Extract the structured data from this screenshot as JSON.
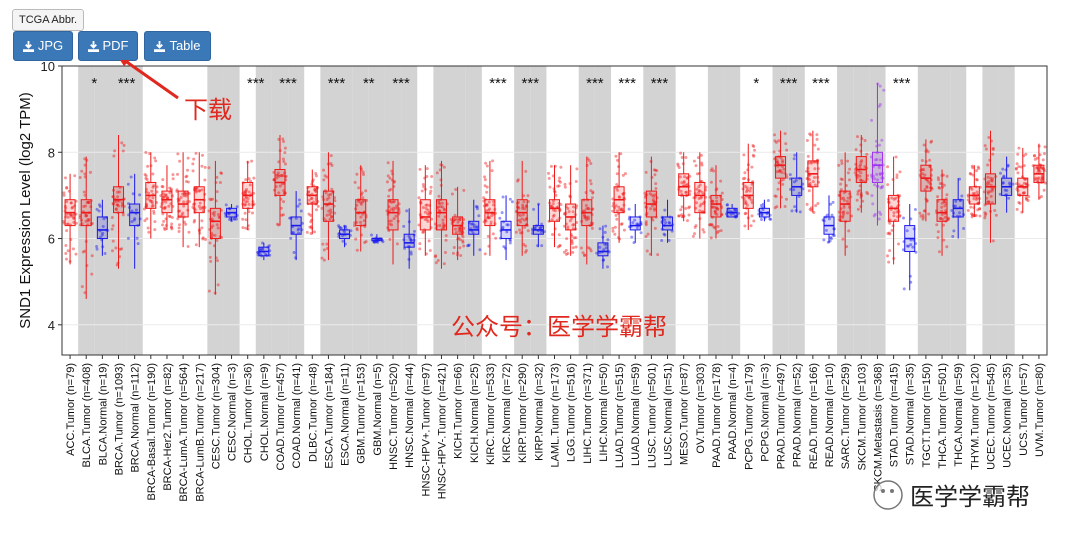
{
  "toolbar": {
    "abbr_label": "TCGA Abbr.",
    "buttons": [
      {
        "label": "JPG",
        "icon": "download-icon"
      },
      {
        "label": "PDF",
        "icon": "download-icon"
      },
      {
        "label": "Table",
        "icon": "download-icon"
      }
    ]
  },
  "annotations": {
    "download_note": "下载",
    "watermark_text": "公众号：医学学霸帮",
    "wechat_brand": "医学学霸帮"
  },
  "colors": {
    "tumor": "#f01818",
    "normal": "#1a1aee",
    "metastasis": "#a030f0",
    "shade": "#d3d3d3",
    "button": "#3a78b8",
    "annotation": "#e0281e"
  },
  "chart_data": {
    "type": "box",
    "ylabel": "SND1 Expression Level (log2 TPM)",
    "ylim": [
      3.3,
      10
    ],
    "yticks": [
      4,
      6,
      8,
      10
    ],
    "categories": [
      "ACC.Tumor (n=79)",
      "BLCA.Tumor (n=408)",
      "BLCA.Normal (n=19)",
      "BRCA.Tumor (n=1093)",
      "BRCA.Normal (n=112)",
      "BRCA-Basal.Tumor (n=190)",
      "BRCA-Her2.Tumor (n=82)",
      "BRCA-LumA.Tumor (n=564)",
      "BRCA-LumB.Tumor (n=217)",
      "CESC.Tumor (n=304)",
      "CESC.Normal (n=3)",
      "CHOL.Tumor (n=36)",
      "CHOL.Normal (n=9)",
      "COAD.Tumor (n=457)",
      "COAD.Normal (n=41)",
      "DLBC.Tumor (n=48)",
      "ESCA.Tumor (n=184)",
      "ESCA.Normal (n=11)",
      "GBM.Tumor (n=153)",
      "GBM.Normal (n=5)",
      "HNSC.Tumor (n=520)",
      "HNSC.Normal (n=44)",
      "HNSC-HPV+.Tumor (n=97)",
      "HNSC-HPV-.Tumor (n=421)",
      "KICH.Tumor (n=66)",
      "KICH.Normal (n=25)",
      "KIRC.Tumor (n=533)",
      "KIRC.Normal (n=72)",
      "KIRP.Tumor (n=290)",
      "KIRP.Normal (n=32)",
      "LAML.Tumor (n=173)",
      "LGG.Tumor (n=516)",
      "LIHC.Tumor (n=371)",
      "LIHC.Normal (n=50)",
      "LUAD.Tumor (n=515)",
      "LUAD.Normal (n=59)",
      "LUSC.Tumor (n=501)",
      "LUSC.Normal (n=51)",
      "MESO.Tumor (n=87)",
      "OV.Tumor (n=303)",
      "PAAD.Tumor (n=178)",
      "PAAD.Normal (n=4)",
      "PCPG.Tumor (n=179)",
      "PCPG.Normal (n=3)",
      "PRAD.Tumor (n=497)",
      "PRAD.Normal (n=52)",
      "READ.Tumor (n=166)",
      "READ.Normal (n=10)",
      "SARC.Tumor (n=259)",
      "SKCM.Tumor (n=103)",
      "SKCM.Metastasis (n=368)",
      "STAD.Tumor (n=415)",
      "STAD.Normal (n=35)",
      "TGCT.Tumor (n=150)",
      "THCA.Tumor (n=501)",
      "THCA.Normal (n=59)",
      "THYM.Tumor (n=120)",
      "UCEC.Tumor (n=545)",
      "UCEC.Normal (n=35)",
      "UCS.Tumor (n=57)",
      "UVM.Tumor (n=80)"
    ],
    "groups": [
      "Tumor",
      "Tumor",
      "Normal",
      "Tumor",
      "Normal",
      "Tumor",
      "Tumor",
      "Tumor",
      "Tumor",
      "Tumor",
      "Normal",
      "Tumor",
      "Normal",
      "Tumor",
      "Normal",
      "Tumor",
      "Tumor",
      "Normal",
      "Tumor",
      "Normal",
      "Tumor",
      "Normal",
      "Tumor",
      "Tumor",
      "Tumor",
      "Normal",
      "Tumor",
      "Normal",
      "Tumor",
      "Normal",
      "Tumor",
      "Tumor",
      "Tumor",
      "Normal",
      "Tumor",
      "Normal",
      "Tumor",
      "Normal",
      "Tumor",
      "Tumor",
      "Tumor",
      "Normal",
      "Tumor",
      "Normal",
      "Tumor",
      "Normal",
      "Tumor",
      "Normal",
      "Tumor",
      "Tumor",
      "Metastasis",
      "Tumor",
      "Normal",
      "Tumor",
      "Tumor",
      "Normal",
      "Tumor",
      "Tumor",
      "Normal",
      "Tumor",
      "Tumor"
    ],
    "medians": [
      6.6,
      6.6,
      6.2,
      6.9,
      6.6,
      7.0,
      6.9,
      6.8,
      6.9,
      6.4,
      6.6,
      7.0,
      5.7,
      7.3,
      6.3,
      7.0,
      6.8,
      6.1,
      6.6,
      6.0,
      6.6,
      5.9,
      6.5,
      6.6,
      6.3,
      6.2,
      6.6,
      6.2,
      6.6,
      6.2,
      6.7,
      6.5,
      6.6,
      5.7,
      6.9,
      6.3,
      6.8,
      6.3,
      7.2,
      7.0,
      6.8,
      6.6,
      7.0,
      6.6,
      7.7,
      7.2,
      7.5,
      6.3,
      6.8,
      7.6,
      7.7,
      6.7,
      6.0,
      7.4,
      6.6,
      6.7,
      7.0,
      7.2,
      7.2,
      7.2,
      7.5
    ],
    "q1": [
      6.3,
      6.3,
      6.0,
      6.6,
      6.3,
      6.7,
      6.6,
      6.5,
      6.6,
      6.0,
      6.5,
      6.7,
      5.6,
      7.0,
      6.1,
      6.8,
      6.4,
      6.0,
      6.3,
      5.95,
      6.2,
      5.8,
      6.2,
      6.2,
      6.1,
      6.1,
      6.3,
      6.0,
      6.3,
      6.1,
      6.4,
      6.2,
      6.3,
      5.6,
      6.6,
      6.2,
      6.5,
      6.2,
      7.0,
      6.6,
      6.5,
      6.5,
      6.7,
      6.5,
      7.4,
      7.0,
      7.2,
      6.1,
      6.4,
      7.3,
      7.3,
      6.4,
      5.7,
      7.1,
      6.4,
      6.5,
      6.8,
      6.8,
      7.0,
      7.0,
      7.3
    ],
    "q3": [
      6.9,
      6.9,
      6.5,
      7.2,
      6.8,
      7.3,
      7.1,
      7.1,
      7.2,
      6.7,
      6.7,
      7.3,
      5.8,
      7.6,
      6.5,
      7.2,
      7.1,
      6.2,
      6.9,
      6.0,
      6.9,
      6.1,
      6.9,
      6.9,
      6.5,
      6.4,
      6.9,
      6.4,
      6.9,
      6.3,
      6.9,
      6.8,
      6.9,
      5.9,
      7.2,
      6.5,
      7.1,
      6.5,
      7.5,
      7.3,
      7.0,
      6.7,
      7.3,
      6.7,
      7.9,
      7.4,
      7.8,
      6.5,
      7.1,
      7.9,
      8.0,
      7.0,
      6.3,
      7.7,
      6.9,
      6.9,
      7.2,
      7.5,
      7.4,
      7.4,
      7.7
    ],
    "whisker_low": [
      5.4,
      4.6,
      5.6,
      5.3,
      5.3,
      6.0,
      6.2,
      5.8,
      5.8,
      4.7,
      6.4,
      6.2,
      5.5,
      6.3,
      5.5,
      6.1,
      5.5,
      5.8,
      5.7,
      5.9,
      5.4,
      5.3,
      5.6,
      5.3,
      5.5,
      5.6,
      5.6,
      5.5,
      5.6,
      5.8,
      5.8,
      5.6,
      5.4,
      5.3,
      5.9,
      5.9,
      5.6,
      5.9,
      6.4,
      6.0,
      6.0,
      6.5,
      6.2,
      6.4,
      6.7,
      6.6,
      6.6,
      5.9,
      5.6,
      6.6,
      6.3,
      5.4,
      4.8,
      6.4,
      5.6,
      6.0,
      6.5,
      5.9,
      6.6,
      6.6,
      6.9
    ],
    "whisker_high": [
      7.5,
      7.9,
      6.9,
      8.4,
      7.5,
      8.0,
      7.7,
      8.0,
      8.0,
      7.8,
      6.8,
      7.8,
      5.9,
      8.4,
      7.1,
      7.6,
      8.0,
      6.3,
      7.7,
      6.1,
      7.8,
      6.7,
      7.7,
      7.8,
      7.2,
      6.9,
      7.8,
      7.0,
      7.8,
      6.8,
      7.7,
      7.7,
      7.9,
      6.3,
      8.0,
      6.8,
      7.9,
      6.9,
      8.0,
      8.0,
      7.7,
      6.8,
      8.2,
      6.9,
      8.5,
      8.0,
      8.5,
      7.0,
      8.0,
      8.4,
      9.6,
      7.9,
      6.8,
      8.3,
      7.6,
      7.4,
      7.7,
      8.5,
      7.9,
      8.1,
      8.2
    ],
    "significance": [
      {
        "category": "BLCA.Tumor (n=408)",
        "label": "*"
      },
      {
        "category": "BRCA.Tumor (n=1093)",
        "label": "***"
      },
      {
        "category": "CHOL.Tumor (n=36)",
        "label": "***"
      },
      {
        "category": "COAD.Tumor (n=457)",
        "label": "***"
      },
      {
        "category": "ESCA.Tumor (n=184)",
        "label": "***"
      },
      {
        "category": "GBM.Tumor (n=153)",
        "label": "**"
      },
      {
        "category": "HNSC.Tumor (n=520)",
        "label": "***"
      },
      {
        "category": "KIRC.Tumor (n=533)",
        "label": "***"
      },
      {
        "category": "KIRP.Tumor (n=290)",
        "label": "***"
      },
      {
        "category": "LIHC.Tumor (n=371)",
        "label": "***"
      },
      {
        "category": "LUAD.Tumor (n=515)",
        "label": "***"
      },
      {
        "category": "LUSC.Tumor (n=501)",
        "label": "***"
      },
      {
        "category": "PCPG.Tumor (n=179)",
        "label": "*"
      },
      {
        "category": "PRAD.Tumor (n=497)",
        "label": "***"
      },
      {
        "category": "READ.Tumor (n=166)",
        "label": "***"
      },
      {
        "category": "STAD.Tumor (n=415)",
        "label": "***"
      }
    ],
    "shaded_categories": [
      "BLCA.Tumor (n=408)",
      "BLCA.Normal (n=19)",
      "BRCA.Tumor (n=1093)",
      "BRCA.Normal (n=112)",
      "CESC.Tumor (n=304)",
      "CESC.Normal (n=3)",
      "CHOL.Normal (n=9)",
      "COAD.Tumor (n=457)",
      "COAD.Normal (n=41)",
      "ESCA.Tumor (n=184)",
      "ESCA.Normal (n=11)",
      "GBM.Tumor (n=153)",
      "GBM.Normal (n=5)",
      "HNSC.Tumor (n=520)",
      "HNSC.Normal (n=44)",
      "HNSC-HPV-.Tumor (n=421)",
      "KICH.Tumor (n=66)",
      "KICH.Normal (n=25)",
      "KIRP.Tumor (n=290)",
      "KIRP.Normal (n=32)",
      "LIHC.Tumor (n=371)",
      "LIHC.Normal (n=50)",
      "LUSC.Tumor (n=501)",
      "LUSC.Normal (n=51)",
      "PAAD.Tumor (n=178)",
      "PAAD.Normal (n=4)",
      "PRAD.Tumor (n=497)",
      "PRAD.Normal (n=52)",
      "SARC.Tumor (n=259)",
      "SKCM.Tumor (n=103)",
      "SKCM.Metastasis (n=368)",
      "TGCT.Tumor (n=150)",
      "THCA.Tumor (n=501)",
      "THCA.Normal (n=59)",
      "UCEC.Tumor (n=545)",
      "UCEC.Normal (n=35)"
    ]
  }
}
